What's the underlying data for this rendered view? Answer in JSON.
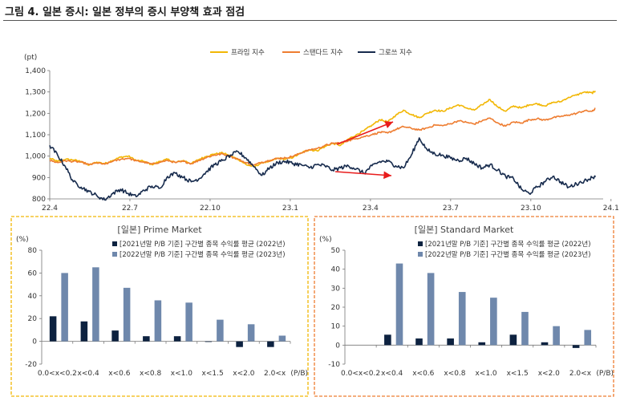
{
  "title": "그림 4. 일본 증시: 일본 정부의 증시 부양책 효과 점검",
  "chart_data": [
    {
      "type": "line",
      "ylabel": "(pt)",
      "ylim": [
        800,
        1400
      ],
      "yticks": [
        "800",
        "900",
        "1,000",
        "1,100",
        "1,200",
        "1,300",
        "1,400"
      ],
      "xticks": [
        "22.4",
        "22.7",
        "22.10",
        "23.1",
        "23.4",
        "23.7",
        "23.10",
        "24.1"
      ],
      "legend_position": "top-center",
      "grid": false,
      "colors": {
        "prime": "#f2b705",
        "standard": "#ee7d31",
        "growth": "#172b4d",
        "arrow": "#e81c1c"
      },
      "series": [
        {
          "name": "프라임 지수",
          "values": [
            [
              0,
              990
            ],
            [
              0.25,
              975
            ],
            [
              0.5,
              985
            ],
            [
              0.75,
              982
            ],
            [
              1,
              975
            ],
            [
              1.25,
              958
            ],
            [
              1.5,
              972
            ],
            [
              1.75,
              965
            ],
            [
              2,
              980
            ],
            [
              2.25,
              995
            ],
            [
              2.5,
              1000
            ],
            [
              2.75,
              980
            ],
            [
              3,
              975
            ],
            [
              3.25,
              960
            ],
            [
              3.5,
              975
            ],
            [
              3.75,
              985
            ],
            [
              4,
              970
            ],
            [
              4.25,
              980
            ],
            [
              4.5,
              965
            ],
            [
              4.75,
              985
            ],
            [
              5,
              1000
            ],
            [
              5.25,
              1010
            ],
            [
              5.5,
              1015
            ],
            [
              5.75,
              1000
            ],
            [
              6,
              985
            ],
            [
              6.25,
              960
            ],
            [
              6.5,
              950
            ],
            [
              6.75,
              970
            ],
            [
              7,
              975
            ],
            [
              7.25,
              990
            ],
            [
              7.5,
              985
            ],
            [
              7.75,
              995
            ],
            [
              8,
              1015
            ],
            [
              8.25,
              1030
            ],
            [
              8.5,
              1025
            ],
            [
              8.75,
              1045
            ],
            [
              9,
              1060
            ],
            [
              9.25,
              1050
            ],
            [
              9.5,
              1080
            ],
            [
              9.75,
              1100
            ],
            [
              10,
              1120
            ],
            [
              10.25,
              1145
            ],
            [
              10.5,
              1170
            ],
            [
              10.75,
              1160
            ],
            [
              11,
              1190
            ],
            [
              11.25,
              1215
            ],
            [
              11.5,
              1195
            ],
            [
              11.75,
              1180
            ],
            [
              12,
              1200
            ],
            [
              12.25,
              1215
            ],
            [
              12.5,
              1210
            ],
            [
              12.75,
              1225
            ],
            [
              13,
              1240
            ],
            [
              13.25,
              1225
            ],
            [
              13.5,
              1215
            ],
            [
              13.75,
              1240
            ],
            [
              14,
              1265
            ],
            [
              14.25,
              1230
            ],
            [
              14.5,
              1210
            ],
            [
              14.75,
              1235
            ],
            [
              15,
              1225
            ],
            [
              15.25,
              1240
            ],
            [
              15.5,
              1245
            ],
            [
              15.75,
              1235
            ],
            [
              16,
              1250
            ],
            [
              16.25,
              1255
            ],
            [
              16.5,
              1275
            ],
            [
              16.75,
              1285
            ],
            [
              17,
              1300
            ],
            [
              17.25,
              1295
            ],
            [
              17.35,
              1305
            ]
          ]
        },
        {
          "name": "스탠다드 지수",
          "values": [
            [
              0,
              980
            ],
            [
              0.25,
              970
            ],
            [
              0.5,
              978
            ],
            [
              0.75,
              975
            ],
            [
              1,
              972
            ],
            [
              1.25,
              960
            ],
            [
              1.5,
              968
            ],
            [
              1.75,
              962
            ],
            [
              2,
              975
            ],
            [
              2.25,
              985
            ],
            [
              2.5,
              990
            ],
            [
              2.75,
              978
            ],
            [
              3,
              972
            ],
            [
              3.25,
              962
            ],
            [
              3.5,
              972
            ],
            [
              3.75,
              980
            ],
            [
              4,
              970
            ],
            [
              4.25,
              975
            ],
            [
              4.5,
              965
            ],
            [
              4.75,
              980
            ],
            [
              5,
              995
            ],
            [
              5.25,
              1005
            ],
            [
              5.5,
              1010
            ],
            [
              5.75,
              998
            ],
            [
              6,
              985
            ],
            [
              6.25,
              968
            ],
            [
              6.5,
              958
            ],
            [
              6.75,
              972
            ],
            [
              7,
              980
            ],
            [
              7.25,
              990
            ],
            [
              7.5,
              992
            ],
            [
              7.75,
              1000
            ],
            [
              8,
              1015
            ],
            [
              8.25,
              1030
            ],
            [
              8.5,
              1035
            ],
            [
              8.75,
              1050
            ],
            [
              9,
              1060
            ],
            [
              9.25,
              1062
            ],
            [
              9.5,
              1072
            ],
            [
              9.75,
              1082
            ],
            [
              10,
              1092
            ],
            [
              10.25,
              1100
            ],
            [
              10.5,
              1112
            ],
            [
              10.75,
              1108
            ],
            [
              11,
              1125
            ],
            [
              11.25,
              1138
            ],
            [
              11.5,
              1130
            ],
            [
              11.75,
              1122
            ],
            [
              12,
              1132
            ],
            [
              12.25,
              1145
            ],
            [
              12.5,
              1142
            ],
            [
              12.75,
              1152
            ],
            [
              13,
              1165
            ],
            [
              13.25,
              1158
            ],
            [
              13.5,
              1150
            ],
            [
              13.75,
              1165
            ],
            [
              14,
              1178
            ],
            [
              14.25,
              1155
            ],
            [
              14.5,
              1140
            ],
            [
              14.75,
              1160
            ],
            [
              15,
              1155
            ],
            [
              15.25,
              1170
            ],
            [
              15.5,
              1175
            ],
            [
              15.75,
              1168
            ],
            [
              16,
              1180
            ],
            [
              16.25,
              1185
            ],
            [
              16.5,
              1192
            ],
            [
              16.75,
              1200
            ],
            [
              17,
              1212
            ],
            [
              17.25,
              1210
            ],
            [
              17.35,
              1222
            ]
          ]
        },
        {
          "name": "그로쓰 지수",
          "values": [
            [
              0,
              1050
            ],
            [
              0.25,
              1005
            ],
            [
              0.5,
              950
            ],
            [
              0.75,
              880
            ],
            [
              1,
              855
            ],
            [
              1.25,
              835
            ],
            [
              1.5,
              815
            ],
            [
              1.75,
              795
            ],
            [
              2,
              825
            ],
            [
              2.25,
              845
            ],
            [
              2.5,
              825
            ],
            [
              2.75,
              810
            ],
            [
              3,
              840
            ],
            [
              3.25,
              860
            ],
            [
              3.5,
              850
            ],
            [
              3.75,
              905
            ],
            [
              4,
              920
            ],
            [
              4.25,
              900
            ],
            [
              4.5,
              880
            ],
            [
              4.75,
              895
            ],
            [
              5,
              930
            ],
            [
              5.25,
              960
            ],
            [
              5.5,
              980
            ],
            [
              5.75,
              1005
            ],
            [
              6,
              1020
            ],
            [
              6.25,
              990
            ],
            [
              6.5,
              950
            ],
            [
              6.75,
              910
            ],
            [
              7,
              945
            ],
            [
              7.25,
              970
            ],
            [
              7.5,
              975
            ],
            [
              7.75,
              965
            ],
            [
              8,
              960
            ],
            [
              8.25,
              945
            ],
            [
              8.5,
              960
            ],
            [
              8.75,
              955
            ],
            [
              9,
              935
            ],
            [
              9.25,
              945
            ],
            [
              9.5,
              955
            ],
            [
              9.75,
              940
            ],
            [
              10,
              920
            ],
            [
              10.25,
              955
            ],
            [
              10.5,
              975
            ],
            [
              10.75,
              975
            ],
            [
              11,
              955
            ],
            [
              11.25,
              945
            ],
            [
              11.5,
              1005
            ],
            [
              11.75,
              1085
            ],
            [
              12,
              1030
            ],
            [
              12.25,
              1010
            ],
            [
              12.5,
              1005
            ],
            [
              12.75,
              990
            ],
            [
              13,
              980
            ],
            [
              13.25,
              990
            ],
            [
              13.5,
              965
            ],
            [
              13.75,
              945
            ],
            [
              14,
              960
            ],
            [
              14.25,
              935
            ],
            [
              14.5,
              905
            ],
            [
              14.75,
              895
            ],
            [
              15,
              845
            ],
            [
              15.25,
              825
            ],
            [
              15.5,
              855
            ],
            [
              15.75,
              880
            ],
            [
              16,
              905
            ],
            [
              16.25,
              880
            ],
            [
              16.5,
              855
            ],
            [
              16.75,
              870
            ],
            [
              17,
              885
            ],
            [
              17.25,
              900
            ],
            [
              17.35,
              902
            ]
          ]
        }
      ]
    },
    {
      "type": "bar",
      "title": "[일본] Prime Market",
      "ylabel": "(%)",
      "xlabel": "(P/B)",
      "ylim": [
        -20,
        80
      ],
      "yticks": [
        "-20",
        "0",
        "20",
        "40",
        "60",
        "80"
      ],
      "categories": [
        "0.0<x<0.2",
        "x<0.4",
        "x<0.6",
        "x<0.8",
        "x<1.0",
        "x<1.5",
        "x<2.0",
        "2.0<x"
      ],
      "legend_position": "top-right",
      "colors": {
        "2022": "#0d2240",
        "2023": "#6f88ac",
        "border": "#f2b705"
      },
      "series": [
        {
          "name": "[2021년말 P/B 기준] 구간별 종목 수익률 평균 (2022년)",
          "values": [
            22,
            17.5,
            9.5,
            4.5,
            4.5,
            -0.5,
            -5,
            -5
          ]
        },
        {
          "name": "[2022년말 P/B 기준] 구간별 종목 수익률 평균 (2023년)",
          "values": [
            60,
            65,
            47,
            36,
            34,
            19,
            15,
            5
          ]
        }
      ]
    },
    {
      "type": "bar",
      "title": "[일본] Standard Market",
      "ylabel": "(%)",
      "xlabel": "(P/B)",
      "ylim": [
        -10,
        50
      ],
      "yticks": [
        "-10",
        "0",
        "10",
        "20",
        "30",
        "40",
        "50"
      ],
      "categories": [
        "0.0<x<0.2",
        "x<0.4",
        "x<0.6",
        "x<0.8",
        "x<1.0",
        "x<1.5",
        "x<2.0",
        "2.0<x"
      ],
      "legend_position": "top-right",
      "colors": {
        "2022": "#0d2240",
        "2023": "#6f88ac",
        "border": "#ee7d31"
      },
      "series": [
        {
          "name": "[2021년말 P/B 기준] 구간별 종목 수익률 평균 (2022년)",
          "values": [
            0,
            5.5,
            3.5,
            3.5,
            1.5,
            5.5,
            1.5,
            -1.5
          ]
        },
        {
          "name": "[2022년말 P/B 기준] 구간별 종목 수익률 평균 (2023년)",
          "values": [
            0,
            43,
            38,
            28,
            25,
            17.5,
            10,
            8
          ]
        }
      ]
    }
  ]
}
